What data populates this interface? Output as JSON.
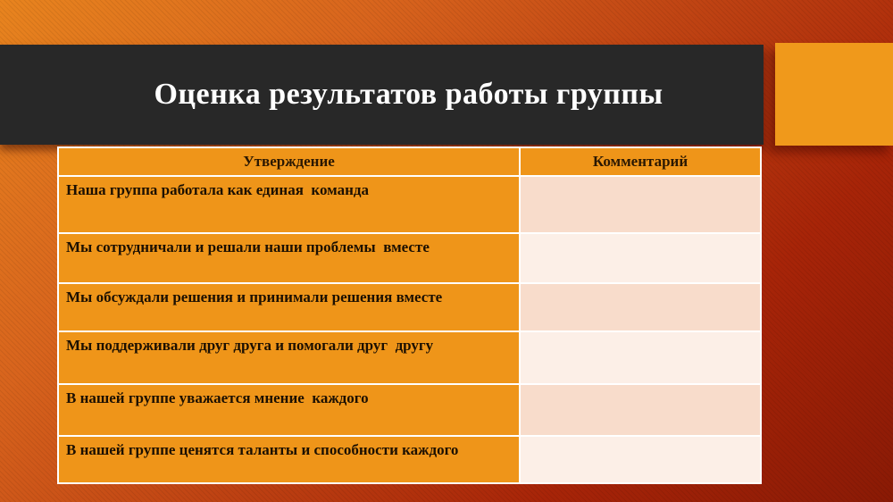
{
  "slide": {
    "title": "Оценка результатов работы группы"
  },
  "table": {
    "headers": {
      "statement": "Утверждение",
      "comment": "Комментарий"
    },
    "rows": [
      {
        "statement": "Наша группа работала как единая  команда",
        "comment": ""
      },
      {
        "statement": "Мы сотрудничали и решали наши проблемы  вместе",
        "comment": ""
      },
      {
        "statement": "Мы обсуждали решения и принимали решения вместе",
        "comment": ""
      },
      {
        "statement": "Мы поддерживали друг друга и помогали друг  другу",
        "comment": ""
      },
      {
        "statement": "В нашей группе уважается мнение  каждого",
        "comment": ""
      },
      {
        "statement": "В нашей группе ценятся таланты и способности каждого",
        "comment": ""
      }
    ]
  },
  "colors": {
    "background_top_left": "#E8841E",
    "background_bottom_right": "#8A1A05",
    "title_bar": "#282828",
    "title_text": "#FFFFFF",
    "accent_square": "#F0991B",
    "table_orange": "#EF9519",
    "header_text": "#2B1802",
    "statement_text": "#1C1002",
    "comment_band_dark": "#F8DCCB",
    "comment_band_light": "#FCEFE7",
    "table_border": "#FFFFFF"
  }
}
